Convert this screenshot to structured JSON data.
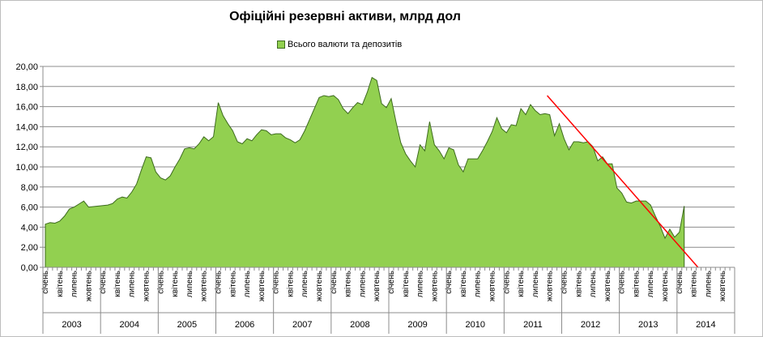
{
  "chart_data": {
    "type": "area",
    "title": "Офіційні резервні активи, млрд дол",
    "legend": [
      "Всього валюти та депозитів"
    ],
    "legend_position": "top",
    "xlabel": "",
    "ylabel": "",
    "ylim": [
      0,
      20
    ],
    "y_ticks": [
      "0,00",
      "2,00",
      "4,00",
      "6,00",
      "8,00",
      "10,00",
      "12,00",
      "14,00",
      "16,00",
      "18,00",
      "20,00"
    ],
    "grid": true,
    "month_labels": [
      "січень",
      "квітень",
      "липень",
      "жовтень"
    ],
    "years": [
      "2003",
      "2004",
      "2005",
      "2006",
      "2007",
      "2008",
      "2009",
      "2010",
      "2011",
      "2012",
      "2013",
      "2014"
    ],
    "series": [
      {
        "name": "Всього валюти та депозитів",
        "color": "#92d050",
        "values": [
          4.3,
          4.45,
          4.4,
          4.6,
          5.1,
          5.8,
          6.0,
          6.3,
          6.6,
          6.0,
          6.05,
          6.1,
          6.15,
          6.2,
          6.35,
          6.8,
          7.0,
          6.9,
          7.5,
          8.3,
          9.7,
          11.0,
          10.9,
          9.5,
          8.9,
          8.7,
          9.1,
          10.0,
          10.8,
          11.8,
          11.9,
          11.8,
          12.3,
          13.0,
          12.6,
          13.0,
          16.4,
          15.1,
          14.3,
          13.6,
          12.5,
          12.3,
          12.8,
          12.6,
          13.2,
          13.7,
          13.6,
          13.2,
          13.3,
          13.3,
          12.9,
          12.7,
          12.4,
          12.7,
          13.6,
          14.7,
          15.8,
          16.9,
          17.1,
          17.0,
          17.1,
          16.7,
          15.8,
          15.3,
          15.9,
          16.4,
          16.2,
          17.4,
          18.9,
          18.6,
          16.3,
          15.9,
          16.8,
          14.5,
          12.4,
          11.3,
          10.6,
          10.0,
          12.2,
          11.6,
          14.5,
          12.2,
          11.6,
          10.8,
          11.9,
          11.7,
          10.2,
          9.5,
          10.8,
          10.8,
          10.8,
          11.6,
          12.5,
          13.5,
          14.9,
          13.8,
          13.4,
          14.2,
          14.1,
          15.8,
          15.2,
          16.2,
          15.6,
          15.2,
          15.3,
          15.2,
          13.1,
          14.3,
          12.8,
          11.7,
          12.5,
          12.5,
          12.4,
          12.5,
          12.0,
          10.6,
          11.0,
          10.3,
          10.3,
          7.9,
          7.4,
          6.5,
          6.4,
          6.6,
          6.6,
          6.6,
          6.2,
          5.1,
          4.1,
          2.9,
          3.8,
          3.0,
          3.5,
          6.1
        ]
      }
    ],
    "trend_line": {
      "color": "#ff0000",
      "start_value": 17.1,
      "end_value": 0
    }
  }
}
